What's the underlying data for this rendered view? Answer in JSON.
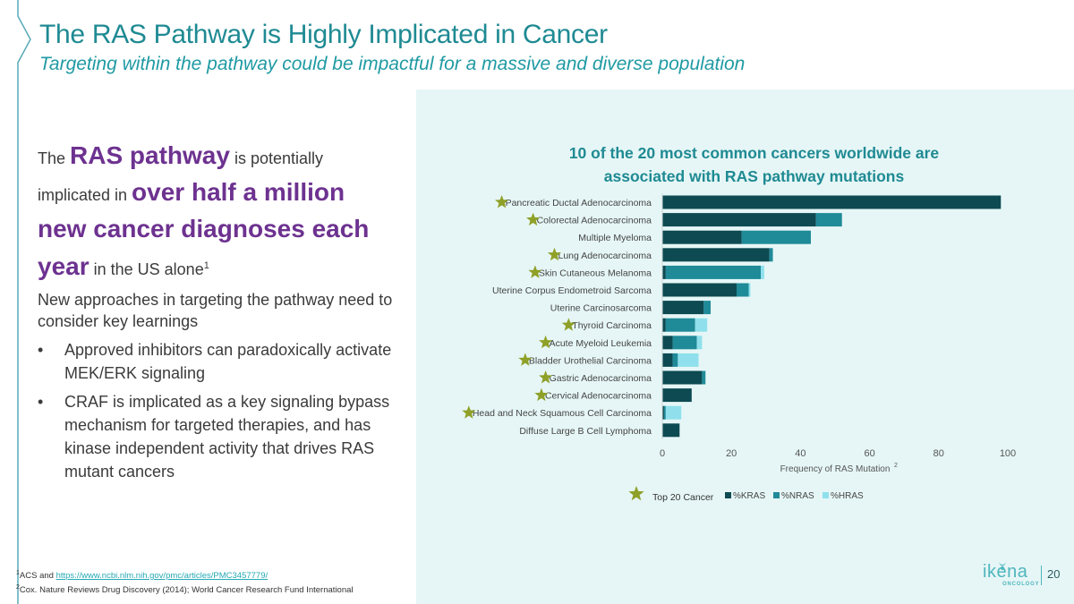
{
  "slide": {
    "title": "The RAS Pathway is Highly Implicated in Cancer",
    "subtitle": "Targeting within the pathway could be impactful for a massive and diverse population",
    "page_number": "20"
  },
  "left": {
    "p1_a": "The ",
    "p1_b": "RAS pathway",
    "p1_c": " is potentially implicated in ",
    "p1_d": "over half a million new cancer diagnoses each year",
    "p1_e": " in the US alone",
    "p1_sup": "1",
    "p2": "New approaches in targeting the pathway need to consider key learnings",
    "bullet_char": "•",
    "bullets": [
      "Approved inhibitors can paradoxically activate MEK/ERK signaling",
      "CRAF is implicated as a key signaling bypass mechanism for targeted therapies, and has kinase independent activity that drives RAS mutant cancers"
    ]
  },
  "footnotes": {
    "f1_sup": "1",
    "f1_text": "ACS and ",
    "f1_link": "https://www.ncbi.nlm.nih.gov/pmc/articles/PMC3457779/",
    "f2_sup": "2",
    "f2_text": "Cox. Nature Reviews Drug Discovery (2014); World Cancer Research Fund International"
  },
  "logo": {
    "name": "ikena",
    "sub": "ONCOLOGY"
  },
  "colors": {
    "title": "#1f8a93",
    "purple": "#6d3290",
    "kras": "#0d4a52",
    "nras": "#1f8a98",
    "hras": "#8fe0ec",
    "star": "#8fa028",
    "panel": "#e6f6f6"
  },
  "chart_data": {
    "type": "bar",
    "orientation": "horizontal",
    "stacked": true,
    "title": "10 of the 20 most common cancers worldwide are associated with RAS pathway mutations",
    "xlabel": "Frequency of RAS Mutation",
    "xlabel_sup": "2",
    "xlim": [
      0,
      100
    ],
    "xticks": [
      0,
      20,
      40,
      60,
      80,
      100
    ],
    "grid": false,
    "legend_position": "bottom",
    "star_legend_label": "Top 20 Cancer",
    "categories": [
      "Pancreatic Ductal Adenocarcinoma",
      "Colorectal Adenocarcinoma",
      "Multiple Myeloma",
      "Lung Adenocarcinoma",
      "Skin Cutaneous Melanoma",
      "Uterine Corpus Endometroid Sarcoma",
      "Uterine Carcinosarcoma",
      "Thyroid Carcinoma",
      "Acute Myeloid Leukemia",
      "Bladder Urothelial Carcinoma",
      "Gastric Adenocarcinoma",
      "Cervical Adenocarcinoma",
      "Head and Neck Squamous Cell Carcinoma",
      "Diffuse Large B Cell Lymphoma"
    ],
    "top20": [
      true,
      true,
      false,
      true,
      true,
      false,
      false,
      true,
      true,
      true,
      true,
      true,
      true,
      false
    ],
    "series": [
      {
        "name": "%KRAS",
        "values": [
          98,
          44.5,
          23,
          31,
          1,
          21.5,
          12,
          1,
          3,
          3,
          11.5,
          8.5,
          0.5,
          5
        ]
      },
      {
        "name": "%NRAS",
        "values": [
          0,
          7.5,
          20,
          1,
          27.5,
          3.5,
          2,
          8.5,
          7,
          1.5,
          1,
          0,
          0.5,
          0
        ]
      },
      {
        "name": "%HRAS",
        "values": [
          0,
          0,
          0,
          0,
          1,
          0.5,
          0,
          3.5,
          1.5,
          6,
          0,
          0,
          4.5,
          0
        ]
      }
    ]
  }
}
